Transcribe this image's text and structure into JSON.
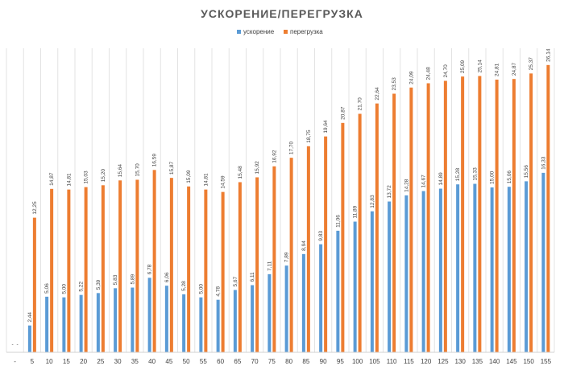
{
  "chart_data": {
    "type": "bar",
    "title": "УСКОРЕНИЕ/ПЕРЕГРУЗКА",
    "xlabel": "",
    "ylabel": "",
    "ylim": [
      0,
      27.5
    ],
    "grid": "vertical",
    "legend_position": "top-center",
    "categories": [
      "-",
      "5",
      "10",
      "15",
      "20",
      "25",
      "30",
      "35",
      "40",
      "45",
      "50",
      "55",
      "60",
      "65",
      "70",
      "75",
      "80",
      "85",
      "90",
      "95",
      "100",
      "105",
      "110",
      "115",
      "120",
      "125",
      "130",
      "135",
      "140",
      "145",
      "150",
      "155"
    ],
    "series": [
      {
        "name": "ускорение",
        "color": "#5B9BD5",
        "values": [
          null,
          2.44,
          5.06,
          5.0,
          5.22,
          5.39,
          5.83,
          5.89,
          6.78,
          6.06,
          5.28,
          5.0,
          4.78,
          5.67,
          6.11,
          7.11,
          7.89,
          8.94,
          9.83,
          11.06,
          11.89,
          12.83,
          13.72,
          14.28,
          14.67,
          14.89,
          15.28,
          15.33,
          15.0,
          15.06,
          15.56,
          16.33
        ],
        "labels": [
          "-",
          "2,44",
          "5,06",
          "5,00",
          "5,22",
          "5,39",
          "5,83",
          "5,89",
          "6,78",
          "6,06",
          "5,28",
          "5,00",
          "4,78",
          "5,67",
          "6,11",
          "7,11",
          "7,89",
          "8,94",
          "9,83",
          "11,06",
          "11,89",
          "12,83",
          "13,72",
          "14,28",
          "14,67",
          "14,89",
          "15,28",
          "15,33",
          "15,00",
          "15,06",
          "15,56",
          "16,33"
        ]
      },
      {
        "name": "перегрузка",
        "color": "#ED7D31",
        "values": [
          null,
          12.25,
          14.87,
          14.81,
          15.03,
          15.2,
          15.64,
          15.7,
          16.59,
          15.87,
          15.09,
          14.81,
          14.59,
          15.48,
          15.92,
          16.92,
          17.7,
          18.75,
          19.64,
          20.87,
          21.7,
          22.64,
          23.53,
          24.09,
          24.48,
          24.7,
          25.09,
          25.14,
          24.81,
          24.87,
          25.37,
          26.14
        ],
        "labels": [
          "-",
          "12,25",
          "14,87",
          "14,81",
          "15,03",
          "15,20",
          "15,64",
          "15,70",
          "16,59",
          "15,87",
          "15,09",
          "14,81",
          "14,59",
          "15,48",
          "15,92",
          "16,92",
          "17,70",
          "18,75",
          "19,64",
          "20,87",
          "21,70",
          "22,64",
          "23,53",
          "24,09",
          "24,48",
          "24,70",
          "25,09",
          "25,14",
          "24,81",
          "24,87",
          "25,37",
          "26,14"
        ]
      }
    ]
  }
}
